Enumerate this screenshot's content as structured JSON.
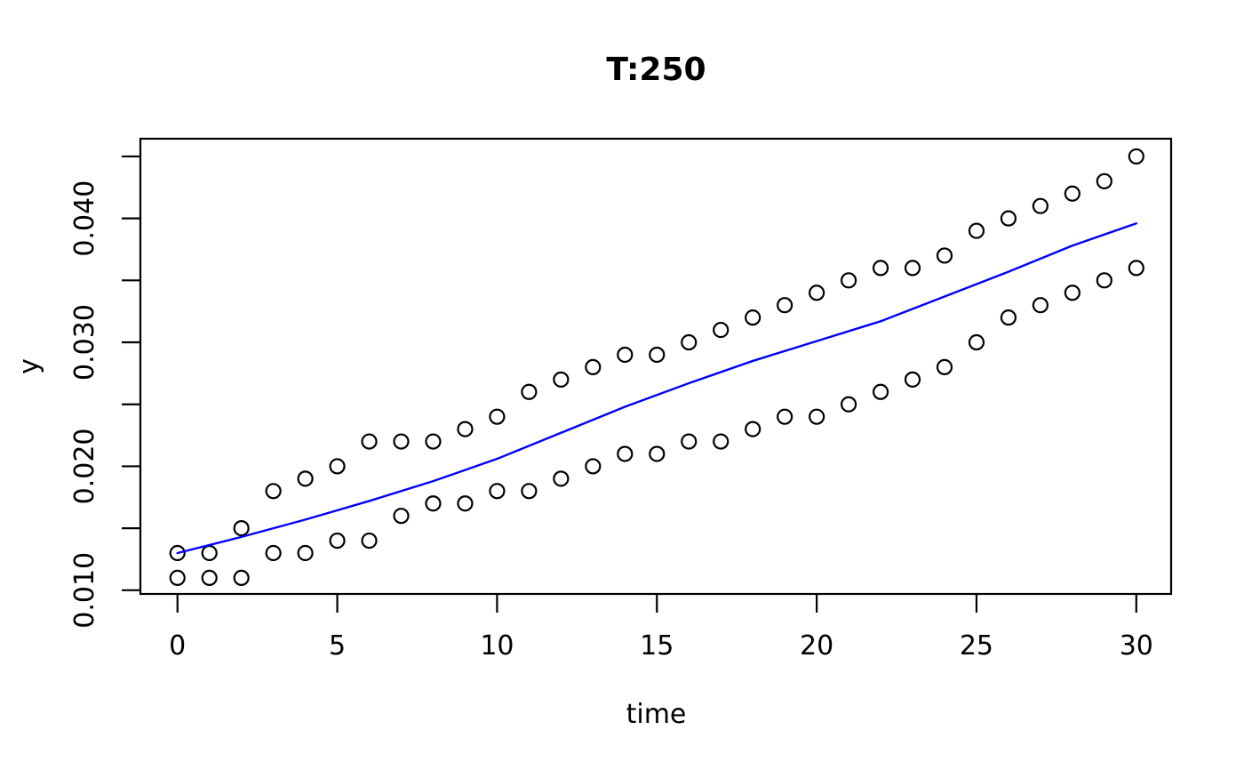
{
  "figure": {
    "background": "#ffffff",
    "frame_color": "#000000"
  },
  "chart_data": {
    "type": "scatter",
    "title": "T:250",
    "xlabel": "time",
    "ylabel": "y",
    "grid": false,
    "legend": null,
    "xlim": [
      -1.16,
      31.09
    ],
    "ylim": [
      0.0097,
      0.04643
    ],
    "x_ticks": [
      0,
      5,
      10,
      15,
      20,
      25,
      30
    ],
    "x_tick_labels": [
      "0",
      "5",
      "10",
      "15",
      "20",
      "25",
      "30"
    ],
    "y_ticks": [
      0.01,
      0.015,
      0.02,
      0.025,
      0.03,
      0.035,
      0.04,
      0.045
    ],
    "y_tick_labels": [
      "0.010",
      "",
      "0.020",
      "",
      "0.030",
      "",
      "0.040",
      ""
    ],
    "x": [
      0,
      1,
      2,
      3,
      4,
      5,
      6,
      7,
      8,
      9,
      10,
      11,
      12,
      13,
      14,
      15,
      16,
      17,
      18,
      19,
      20,
      21,
      22,
      23,
      24,
      25,
      26,
      27,
      28,
      29,
      30
    ],
    "series": [
      {
        "name": "upper-band-points",
        "type": "points",
        "marker": "open-circle",
        "color": "#000000",
        "values": [
          0.013,
          0.013,
          0.015,
          0.018,
          0.019,
          0.02,
          0.022,
          0.022,
          0.022,
          0.023,
          0.024,
          0.026,
          0.027,
          0.028,
          0.029,
          0.029,
          0.03,
          0.031,
          0.032,
          0.033,
          0.034,
          0.035,
          0.036,
          0.036,
          0.037,
          0.039,
          0.04,
          0.041,
          0.042,
          0.043,
          0.045
        ]
      },
      {
        "name": "lower-band-points",
        "type": "points",
        "marker": "open-circle",
        "color": "#000000",
        "values": [
          0.011,
          0.011,
          0.011,
          0.013,
          0.013,
          0.014,
          0.014,
          0.016,
          0.017,
          0.017,
          0.018,
          0.018,
          0.019,
          0.02,
          0.021,
          0.021,
          0.022,
          0.022,
          0.023,
          0.024,
          0.024,
          0.025,
          0.026,
          0.027,
          0.028,
          0.03,
          0.032,
          0.033,
          0.034,
          0.035,
          0.036
        ]
      },
      {
        "name": "trend-line",
        "type": "line",
        "color": "#0000ff",
        "x": [
          0,
          2,
          4,
          6,
          8,
          10,
          12,
          14,
          16,
          18,
          20,
          22,
          24,
          26,
          28,
          30
        ],
        "values": [
          0.013,
          0.0143,
          0.0157,
          0.0172,
          0.0188,
          0.0206,
          0.0227,
          0.0248,
          0.0267,
          0.0285,
          0.0301,
          0.0317,
          0.0337,
          0.0357,
          0.0378,
          0.0396
        ]
      }
    ]
  }
}
